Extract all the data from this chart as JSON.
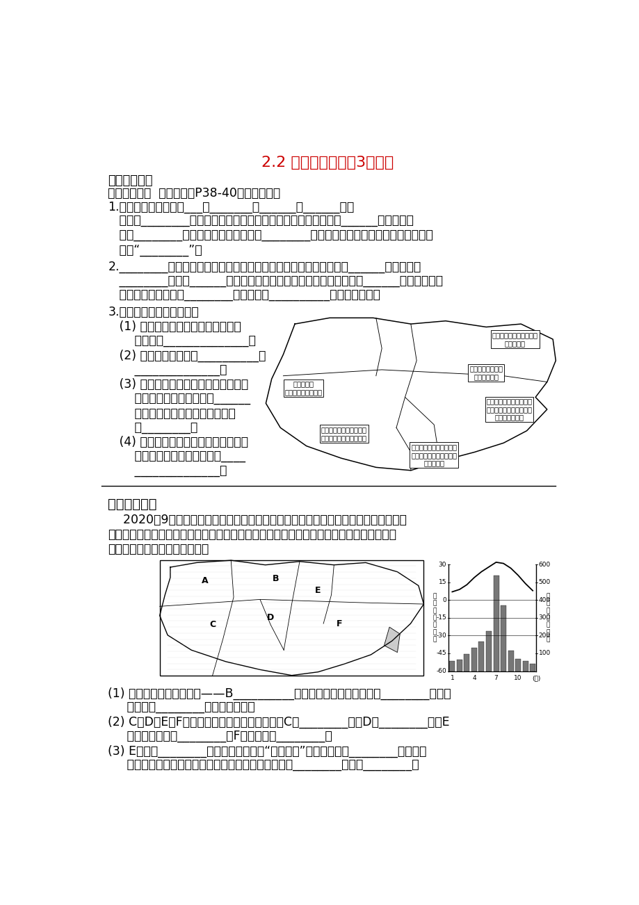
{
  "title": "2.2 中国的气候（第3课时）",
  "title_color": "#CC0000",
  "bg_color": "#ffffff",
  "section1": "一、认定目标",
  "section2": "二、自主学习  请预习课本P38-40回答下列问题",
  "q1_line1": "1.我国特殊天气主要有___、_______、______、______等。",
  "q1_line2": "   寒潮是________影响我国主要灾害性天气，入侵南方强寒潮，使______地区农作物",
  "q1_line3": "   受到________；草原牧区，寒潮带来的________会覆盖草场，造成雪灾；在干燥地区，",
  "q1_line4": "   引起“________”。",
  "q2_line1": "2.________是我国发生频繁，损失严重的自然灾害，多出现降水集中______季节，影响",
  "q2_line2": "   ________地区；______是对我国农业生产影响最大，最常见且分布______的一种气候灾",
  "q2_line3": "   害，在我国，无论是________地区，还是__________亦常出现旱灾。",
  "q3_head": "3.读下图，回答下列问题。",
  "q3_1_line1": "   (1) 在各种气象气候灾害中，具有全",
  "q3_1_line2": "       国性的是______________。",
  "q3_2_line1": "   (2) 我国受低温冷害的__________，",
  "q3_2_line2": "       ______________。",
  "q3_3_line1": "   (3) 干旱灾害影响我国范围广，其中华",
  "q3_3_line2": "       北地区干旱发生的时间是______",
  "q3_3_line3": "       长江中下游地区干旱发生的时间",
  "q3_3_line4": "       是________。",
  "q3_4_line1": "   (4) 影响我国东南沿海的台风，除带来",
  "q3_4_line2": "       洪涝灾害外，其有益方面有____",
  "q3_4_line3": "       ______________。",
  "section3": "三、共同探究",
  "para1_line1": "    2020年9月以来，我国南方大部地区高温少雨，湖南、江西、浙江、安徽等地出现不",
  "para1_line2": "同程度秋旱，秋旱导致上述地区的江河库湖蓄水比常年同期明显偏少，影响了水上航运、水",
  "para1_line3": "力发电、生活用水及农业生产。",
  "bottom_q1": "(1) 受灾地区主要位于秦岭——B__________河一线以南地区，主要属于________带（温",
  "bottom_q1b": "     度带）和________区（干湿区）。",
  "bottom_q2": "(2) C、D、E、F为此次受旱较严重的省区，其中C是________省，D是________省，E",
  "bottom_q2b": "     省的行政中心是________，F省的简称是________。",
  "bottom_q3": "(3) E省地处________平原，该平原成为“鱼米之乡”主要是受惠于________气候（气",
  "bottom_q3b": "     候类型）的影响，读右图，该气候的主要特征是夏季________，冬季________。"
}
